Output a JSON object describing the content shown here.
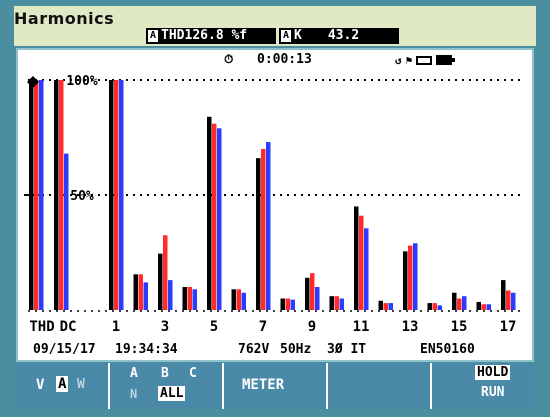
{
  "header": {
    "title": "Harmonics",
    "thd_tag": "A",
    "thd_value": "THD126.8 %f",
    "k_tag": "A",
    "k_label": "K",
    "k_value": "43.2"
  },
  "status": {
    "timer_icon": "stopwatch-icon",
    "elapsed": "0:00:13",
    "icons": [
      "phase-rotation-icon",
      "flag-icon",
      "memory-icon",
      "battery-icon"
    ]
  },
  "chart_data": {
    "type": "bar",
    "categories": [
      "THD",
      "DC",
      "1",
      "2",
      "3",
      "4",
      "5",
      "6",
      "7",
      "8",
      "9",
      "10",
      "11",
      "12",
      "13",
      "14",
      "15",
      "16",
      "17"
    ],
    "x_tick_labels": [
      "THD",
      "DC",
      "1",
      "3",
      "5",
      "7",
      "9",
      "11",
      "13",
      "15",
      "17"
    ],
    "y_tick_labels": [
      "100%",
      "50%"
    ],
    "ylim": [
      0,
      100
    ],
    "series": [
      {
        "values": [
          100,
          100,
          100,
          15.5,
          24.5,
          10,
          84,
          9,
          66,
          5,
          14,
          6,
          45,
          4,
          25.5,
          3,
          7.5,
          3.5,
          13
        ],
        "color": "#000000"
      },
      {
        "values": [
          100,
          100,
          100,
          15.5,
          32.5,
          10,
          81,
          9,
          70,
          5,
          16,
          6,
          41,
          3,
          28,
          3,
          5,
          2.5,
          8.5
        ],
        "color": "#ff2b2b"
      },
      {
        "values": [
          100,
          68,
          100,
          12,
          13,
          9,
          79,
          7.5,
          73,
          4.5,
          10,
          5,
          35.5,
          3,
          29,
          2,
          6,
          2.5,
          7.5
        ],
        "color": "#2b3bff"
      }
    ],
    "grid": true
  },
  "info": {
    "date": "09/15/17",
    "time": "19:34:34",
    "voltage": "762V",
    "frequency": "50Hz",
    "system": "3Ø IT",
    "standard": "EN50160"
  },
  "softkeys": {
    "f1": {
      "v": "V",
      "a": "A",
      "w": "W"
    },
    "f2": {
      "a": "A",
      "b": "B",
      "c": "C",
      "n": "N",
      "all": "ALL"
    },
    "f3": {
      "label": "METER"
    },
    "f4": {
      "label": ""
    },
    "f5": {
      "hold": "HOLD",
      "run": "RUN"
    }
  }
}
